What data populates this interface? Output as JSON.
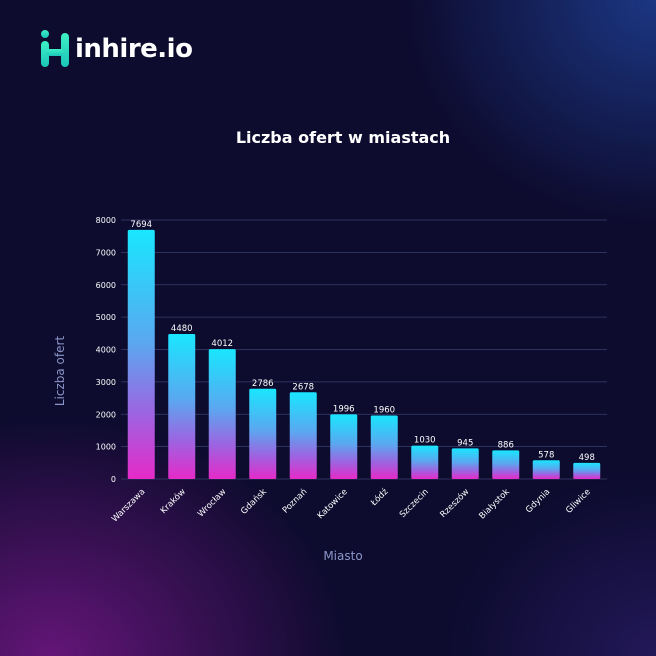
{
  "brand": {
    "logo_text": "inhire.io",
    "logo_icon": "inhire-logo-icon"
  },
  "colors": {
    "background": "#0d0b2e",
    "bar_top": "#19e6ff",
    "bar_bottom": "#e62ac8",
    "grid": "#3a3f70",
    "axis_text": "#ffffff"
  },
  "chart_data": {
    "type": "bar",
    "title": "Liczba ofert w miastach",
    "xlabel": "Miasto",
    "ylabel": "Liczba ofert",
    "categories": [
      "Warszawa",
      "Kraków",
      "Wrocław",
      "Gdańsk",
      "Poznań",
      "Katowice",
      "Łódź",
      "Szczecin",
      "Rzeszów",
      "Białystok",
      "Gdynia",
      "Gliwice"
    ],
    "values": [
      7694,
      4480,
      4012,
      2786,
      2678,
      1996,
      1960,
      1030,
      945,
      886,
      578,
      498
    ],
    "ylim": [
      0,
      8000
    ],
    "yticks": [
      0,
      1000,
      2000,
      3000,
      4000,
      5000,
      6000,
      7000,
      8000
    ],
    "grid": true,
    "legend": "none"
  }
}
